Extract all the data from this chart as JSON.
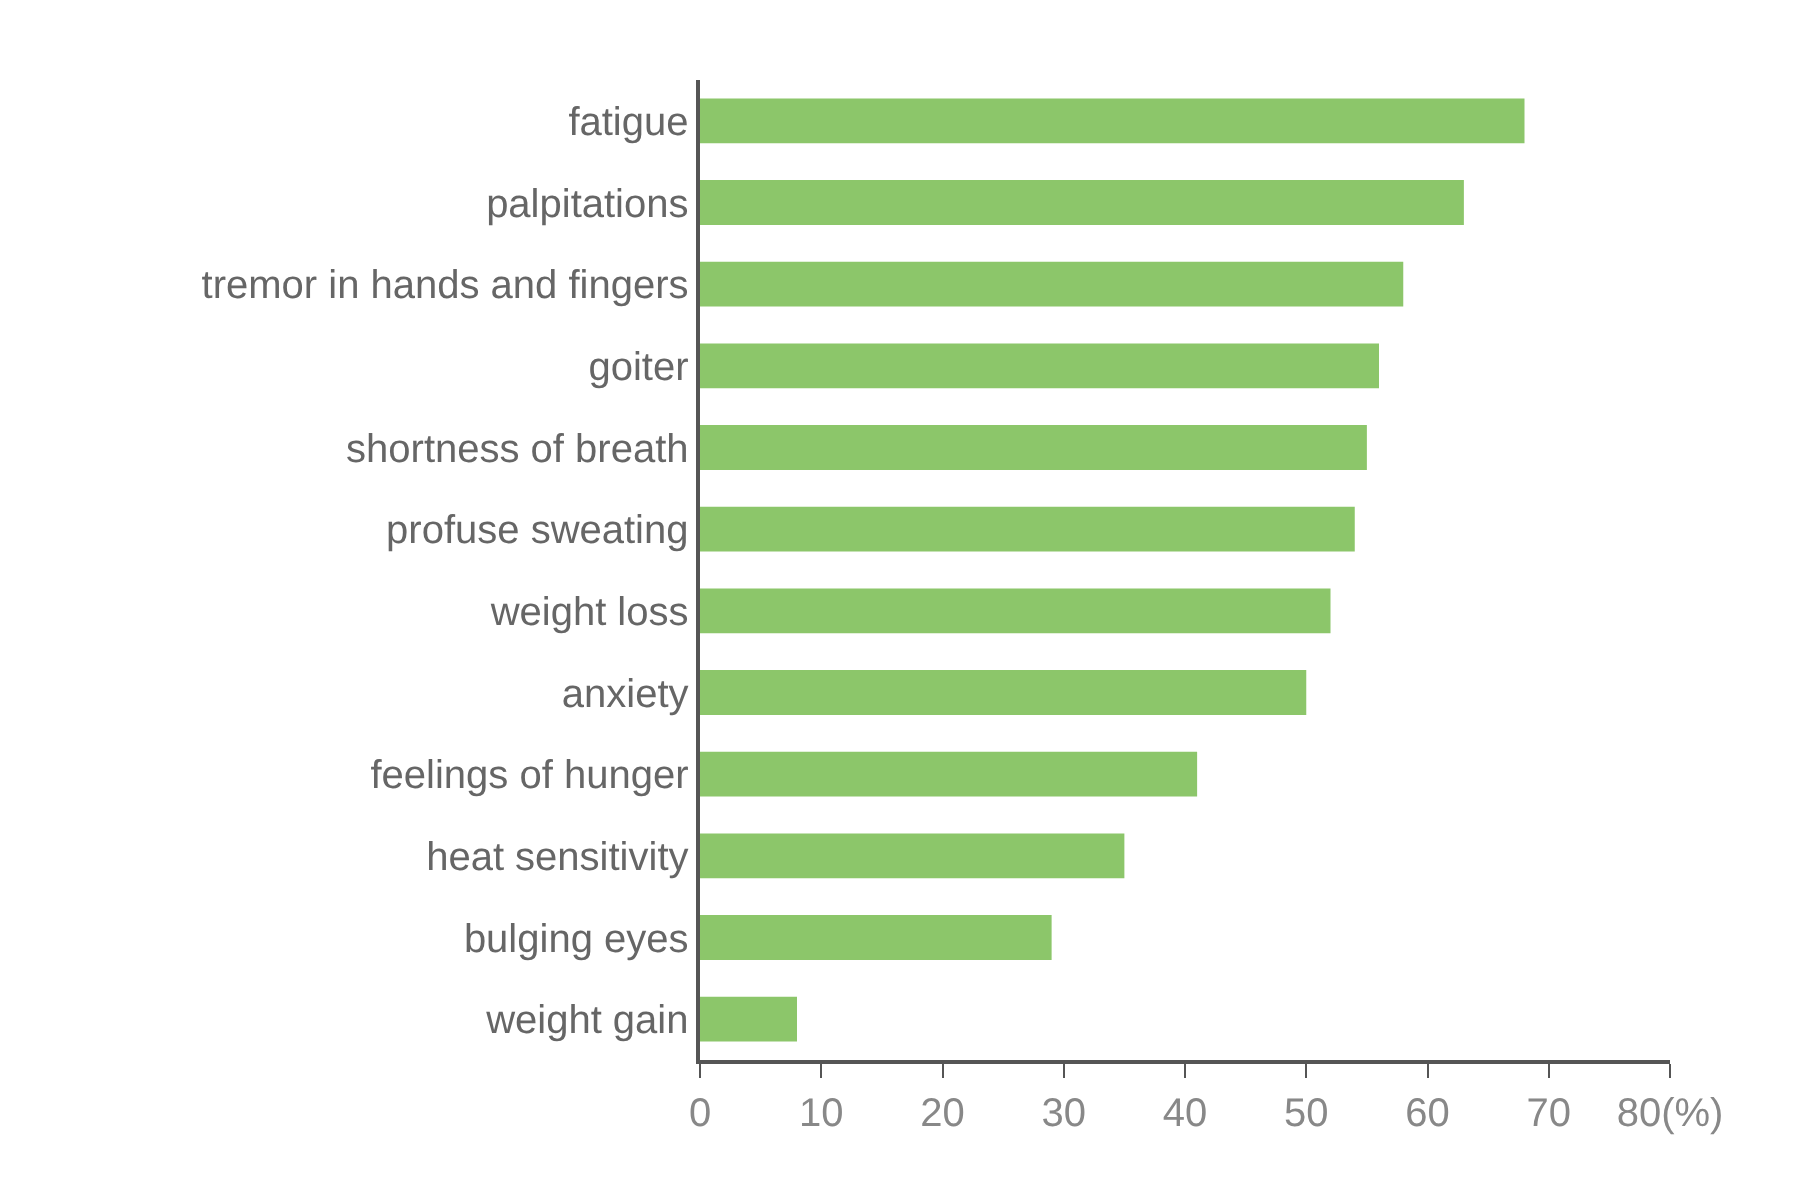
{
  "chart_data": {
    "type": "bar",
    "orientation": "horizontal",
    "categories": [
      "fatigue",
      "palpitations",
      "tremor in hands and fingers",
      "goiter",
      "shortness of breath",
      "profuse sweating",
      "weight loss",
      "anxiety",
      "feelings of hunger",
      "heat sensitivity",
      "bulging eyes",
      "weight gain"
    ],
    "values": [
      68,
      63,
      58,
      56,
      55,
      54,
      52,
      50,
      41,
      35,
      29,
      8
    ],
    "color": "#8cc66a",
    "xlim": [
      0,
      80
    ],
    "xticks": [
      0,
      10,
      20,
      30,
      40,
      50,
      60,
      70,
      {
        "value": 80,
        "label": "80(%)"
      }
    ]
  }
}
